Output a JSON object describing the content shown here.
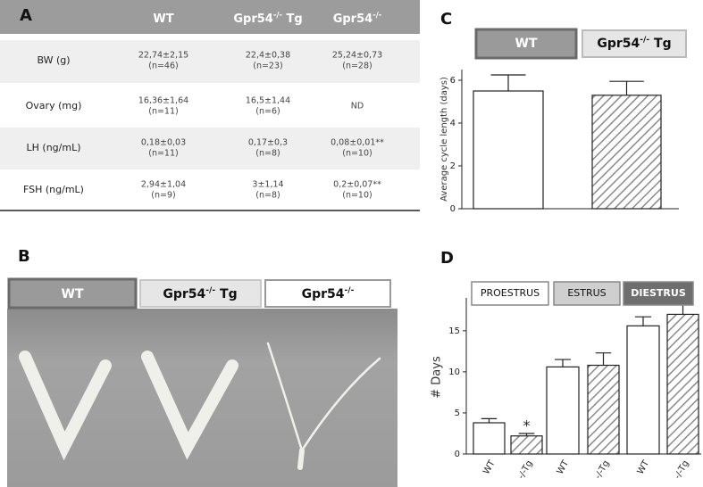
{
  "panel_labels": [
    "A",
    "B",
    "C",
    "D"
  ],
  "table": {
    "header": [
      {
        "base": "WT"
      },
      {
        "base": "Gpr54",
        "sup": "-/-",
        "tail": " Tg"
      },
      {
        "base": "Gpr54",
        "sup": "-/-"
      }
    ],
    "rows": [
      [
        "BW (g)",
        [
          "22,74±2,15",
          "(n=46)"
        ],
        [
          "22,4±0,38",
          "(n=23)"
        ],
        [
          "25,24±0,73",
          "(n=28)"
        ]
      ],
      [
        "Ovary (mg)",
        [
          "16,36±1,64",
          "(n=11)"
        ],
        [
          "16,5±1,44",
          "(n=6)"
        ],
        [
          "ND"
        ]
      ],
      [
        "LH (ng/mL)",
        [
          "0,18±0,03",
          "(n=11)"
        ],
        [
          "0,17±0,3",
          "(n=8)"
        ],
        [
          "0,08±0,01**",
          "(n=10)"
        ]
      ],
      [
        "FSH (ng/mL)",
        [
          "2,94±1,04",
          "(n=9)"
        ],
        [
          "3±1,14",
          "(n=8)"
        ],
        [
          "0,2±0,07**",
          "(n=10)"
        ]
      ]
    ]
  },
  "photo_labels": [
    {
      "base": "WT"
    },
    {
      "base": "Gpr54",
      "sup": "-/-",
      "tail": " Tg"
    },
    {
      "base": "Gpr54",
      "sup": "-/-"
    }
  ],
  "chart_data": [
    {
      "type": "bar",
      "y_label": "Average cycle length  (days)",
      "ylim": [
        0,
        6.5
      ],
      "yticks": [
        0,
        2,
        4,
        6
      ],
      "series": [
        {
          "name": {
            "base": "WT"
          },
          "values": [
            5.5
          ],
          "errors": [
            0.75
          ],
          "hatched": false,
          "legend_color": "#9a9a9a"
        },
        {
          "name": {
            "base": "Gpr54",
            "sup": "-/-",
            "tail": " Tg"
          },
          "values": [
            5.3
          ],
          "errors": [
            0.65
          ],
          "hatched": true,
          "legend_color": "#e6e6e6"
        }
      ]
    },
    {
      "type": "bar",
      "y_label": "# Days",
      "ylim": [
        0,
        19
      ],
      "yticks": [
        0,
        5,
        10,
        15
      ],
      "legend": [
        {
          "name": "PROESTRUS",
          "color": "#ffffff"
        },
        {
          "name": "ESTRUS",
          "color": "#cfcfcf"
        },
        {
          "name": "DIESTRUS",
          "color": "#6e6e6e"
        }
      ],
      "categories": [
        "WT",
        "-/-Tg",
        "WT",
        "-/-Tg",
        "WT",
        "-/-Tg"
      ],
      "values": [
        3.8,
        2.2,
        10.6,
        10.8,
        15.6,
        17.0
      ],
      "errors": [
        0.5,
        0.3,
        0.9,
        1.5,
        1.1,
        1.7
      ],
      "hatched": [
        false,
        true,
        false,
        true,
        false,
        true
      ],
      "annotations": [
        {
          "text": "*",
          "index": 1
        }
      ]
    }
  ]
}
